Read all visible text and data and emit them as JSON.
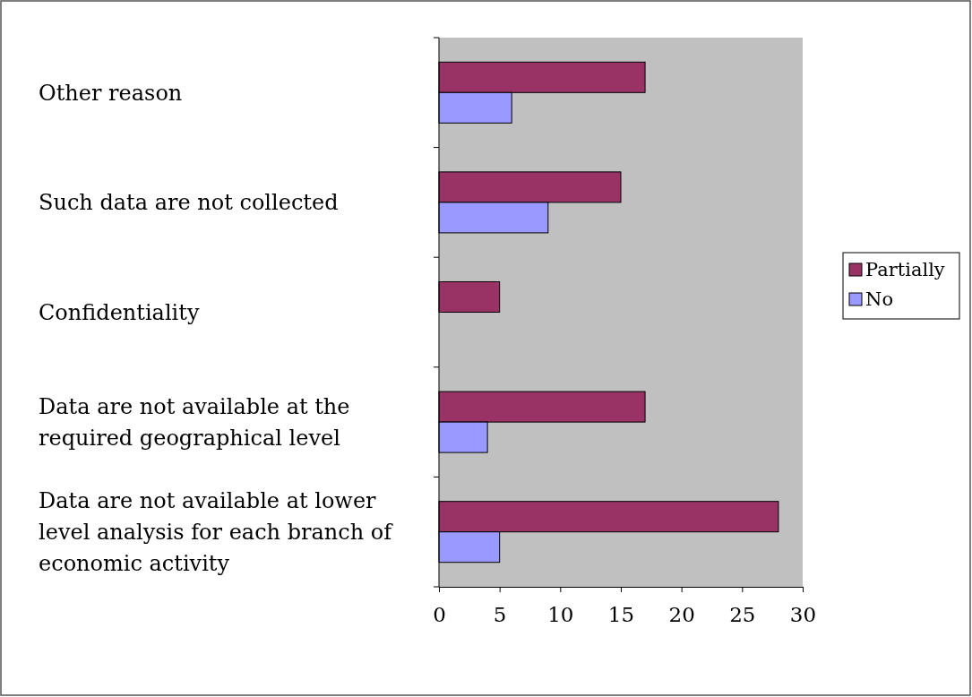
{
  "chart_data": {
    "type": "bar",
    "orientation": "horizontal",
    "categories": [
      "Other reason",
      "Such data are not collected",
      "Confidentiality",
      "Data are not available at the required geographical level",
      "Data are not available at lower level analysis for each branch of economic activity"
    ],
    "series": [
      {
        "name": "Partially",
        "color": "#993366",
        "values": [
          17,
          15,
          5,
          17,
          28
        ]
      },
      {
        "name": "No",
        "color": "#9999ff",
        "values": [
          6,
          9,
          0,
          4,
          5
        ]
      }
    ],
    "xlim": [
      0,
      30
    ],
    "xticks": [
      0,
      5,
      10,
      15,
      20,
      25,
      30
    ],
    "grid": false,
    "legend": "right"
  }
}
